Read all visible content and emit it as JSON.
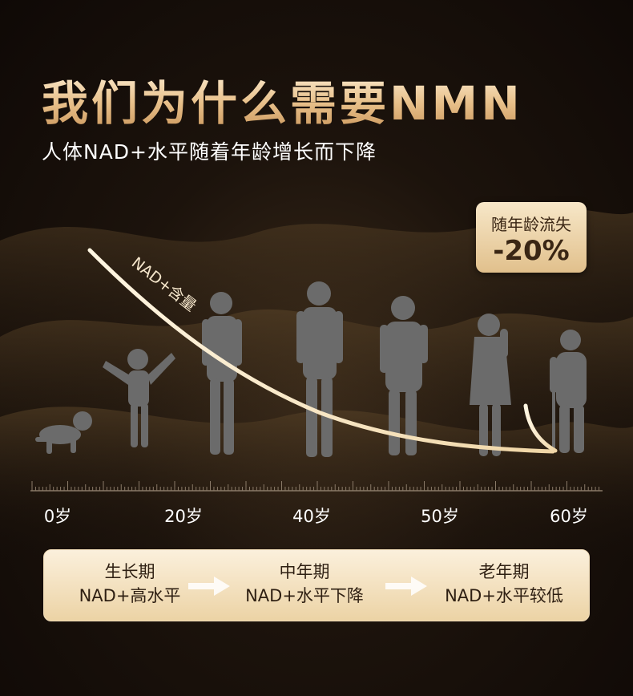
{
  "title": "我们为什么需要NMN",
  "subtitle": "人体NAD+水平随着年龄增长而下降",
  "curve_label": "NAD+含量",
  "badge": {
    "label": "随年龄流失",
    "value": "-20%"
  },
  "ages": [
    "0岁",
    "20岁",
    "40岁",
    "50岁",
    "60岁"
  ],
  "stages": [
    {
      "name": "生长期",
      "desc": "NAD+高水平"
    },
    {
      "name": "中年期",
      "desc": "NAD+水平下降"
    },
    {
      "name": "老年期",
      "desc": "NAD+水平较低"
    }
  ],
  "colors": {
    "accent": "#e8c08a",
    "silhouette": "#6b6b6b",
    "curve": "#fff3dc"
  }
}
